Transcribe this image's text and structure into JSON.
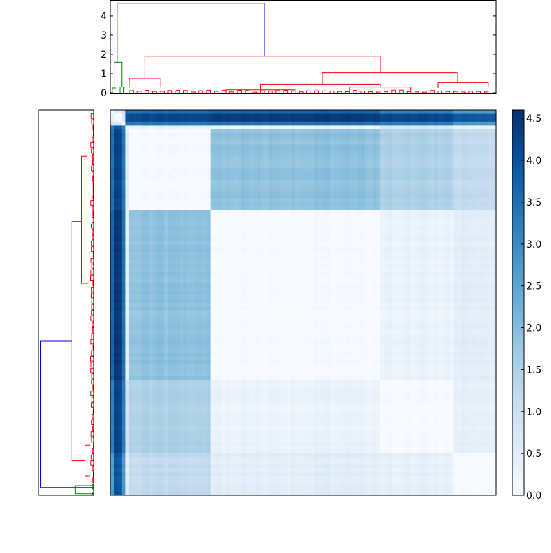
{
  "chart_data": [
    {
      "type": "dendrogram",
      "orientation": "top",
      "y_ticks": [
        "0",
        "1",
        "2",
        "3",
        "4"
      ],
      "ylim": [
        0,
        4.8
      ],
      "colors": {
        "top_link": "#0000ff",
        "cluster_a": "#008000",
        "cluster_b": "#ff0000"
      },
      "links": [
        {
          "name": "root-link",
          "color": "top_link",
          "x": [
            2,
            2,
            40,
            40
          ],
          "y": [
            1.6,
            4.65,
            4.65,
            1.9
          ]
        },
        {
          "name": "cluster-a-link",
          "color": "cluster_a",
          "x": [
            1,
            1,
            3,
            3
          ],
          "y": [
            0.25,
            1.6,
            1.6,
            0.3
          ]
        },
        {
          "name": "cluster-a-sub-left",
          "color": "cluster_a",
          "x": [
            0.5,
            0.5,
            1.5,
            1.5
          ],
          "y": [
            0,
            0.25,
            0.25,
            0
          ]
        },
        {
          "name": "cluster-a-sub-right",
          "color": "cluster_a",
          "x": [
            2.5,
            2.5,
            3.5,
            3.5
          ],
          "y": [
            0,
            0.3,
            0.3,
            0
          ]
        },
        {
          "name": "cluster-b-top",
          "color": "cluster_b",
          "x": [
            9,
            9,
            70,
            70
          ],
          "y": [
            0.75,
            1.9,
            1.9,
            1.05
          ]
        },
        {
          "name": "cluster-b-left",
          "color": "cluster_b",
          "x": [
            5,
            5,
            13,
            13
          ],
          "y": [
            0.3,
            0.75,
            0.75,
            0.28
          ]
        },
        {
          "name": "cluster-b-right",
          "color": "cluster_b",
          "x": [
            55,
            55,
            90,
            90
          ],
          "y": [
            0.45,
            1.05,
            1.05,
            0.55
          ]
        },
        {
          "name": "cluster-b-mid-left",
          "color": "cluster_b",
          "x": [
            39,
            39,
            70,
            70
          ],
          "y": [
            0.15,
            0.45,
            0.45,
            0.3
          ]
        },
        {
          "name": "cluster-b-far-right",
          "color": "cluster_b",
          "x": [
            85,
            85,
            98,
            98
          ],
          "y": [
            0.25,
            0.55,
            0.55,
            0.3
          ]
        },
        {
          "name": "cluster-b-mid",
          "color": "cluster_b",
          "x": [
            30,
            30,
            48,
            48
          ],
          "y": [
            0.05,
            0.15,
            0.15,
            0.05
          ]
        },
        {
          "name": "cluster-b-mid2",
          "color": "cluster_b",
          "x": [
            62,
            62,
            78,
            78
          ],
          "y": [
            0.05,
            0.3,
            0.3,
            0.1
          ]
        }
      ]
    },
    {
      "type": "dendrogram",
      "orientation": "left",
      "colors": {
        "top_link": "#0000ff",
        "cluster_a": "#008000",
        "cluster_b": "#ff0000"
      },
      "links": [
        {
          "name": "root-link",
          "color": "top_link",
          "y": [
            98,
            98,
            60,
            60
          ],
          "h": [
            0.02,
            4.65,
            4.65,
            1.9
          ]
        },
        {
          "name": "cluster-a-link",
          "color": "cluster_a",
          "y": [
            99.6,
            99.6,
            97.5,
            97.5
          ],
          "h": [
            0.02,
            1.6,
            1.6,
            0.02
          ]
        },
        {
          "name": "cluster-b-top",
          "color": "cluster_b",
          "y": [
            91,
            91,
            29,
            29
          ],
          "h": [
            0.75,
            1.9,
            1.9,
            1.05
          ]
        },
        {
          "name": "cluster-b-upper",
          "color": "cluster_b",
          "y": [
            45,
            45,
            12,
            12
          ],
          "h": [
            0.45,
            1.05,
            1.05,
            0.55
          ]
        },
        {
          "name": "cluster-b-lower",
          "color": "cluster_b",
          "y": [
            95,
            95,
            87,
            87
          ],
          "h": [
            0.3,
            0.75,
            0.75,
            0.28
          ]
        }
      ]
    },
    {
      "type": "heatmap",
      "n": 100,
      "clusters": [
        1,
        2,
        1,
        1,
        21,
        44,
        19,
        11
      ],
      "cluster_matrix": [
        [
          0.0,
          0.4,
          0.8,
          3.5,
          3.5,
          3.7,
          3.2,
          2.7
        ],
        [
          0.4,
          0.0,
          0.6,
          3.9,
          4.2,
          4.4,
          4.2,
          3.9
        ],
        [
          0.8,
          0.6,
          0.0,
          3.2,
          3.3,
          3.4,
          3.2,
          2.7
        ],
        [
          3.5,
          3.9,
          3.2,
          0.0,
          0.4,
          0.3,
          0.8,
          0.4
        ],
        [
          3.5,
          4.2,
          3.3,
          0.4,
          0.0,
          1.9,
          1.5,
          1.2
        ],
        [
          3.7,
          4.4,
          3.4,
          0.3,
          1.9,
          0.0,
          0.3,
          0.5
        ],
        [
          3.2,
          4.2,
          3.2,
          0.8,
          1.5,
          0.3,
          0.0,
          0.4
        ],
        [
          2.7,
          3.9,
          2.7,
          0.4,
          1.2,
          0.5,
          0.4,
          0.0
        ]
      ],
      "vmin": 0.0,
      "vmax": 4.6,
      "colormap": "Blues"
    },
    {
      "type": "colorbar",
      "vmin": 0.0,
      "vmax": 4.6,
      "ticks": [
        {
          "value": 0.0,
          "label": "0.0"
        },
        {
          "value": 0.5,
          "label": "0.5"
        },
        {
          "value": 1.0,
          "label": "1.0"
        },
        {
          "value": 1.5,
          "label": "1.5"
        },
        {
          "value": 2.0,
          "label": "2.0"
        },
        {
          "value": 2.5,
          "label": "2.5"
        },
        {
          "value": 3.0,
          "label": "3.0"
        },
        {
          "value": 3.5,
          "label": "3.5"
        },
        {
          "value": 4.0,
          "label": "4.0"
        },
        {
          "value": 4.5,
          "label": "4.5"
        }
      ]
    }
  ]
}
